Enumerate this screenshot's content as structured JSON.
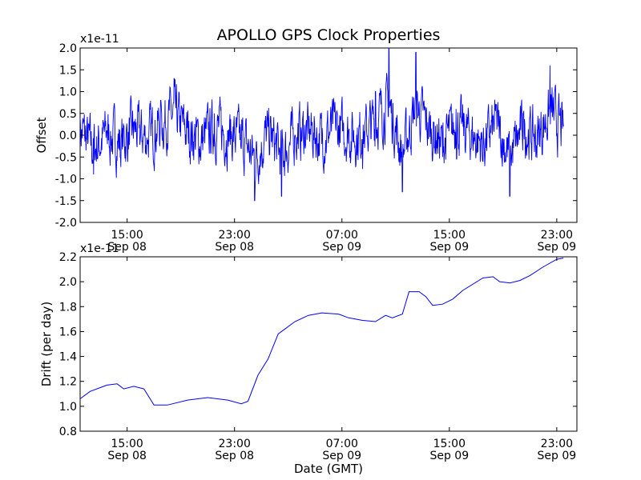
{
  "figure": {
    "title": "APOLLO GPS Clock Properties",
    "xlabel": "Date (GMT)"
  },
  "chart_data": [
    {
      "type": "line",
      "ylabel": "Offset",
      "yscale_label": "x1e-11",
      "ylim": [
        -2.0,
        2.0
      ],
      "yticks": [
        -2.0,
        -1.5,
        -1.0,
        -0.5,
        0.0,
        0.5,
        1.0,
        1.5,
        2.0
      ],
      "ytick_labels": [
        "-2.0",
        "-1.5",
        "-1.0",
        "-0.5",
        "0.0",
        "0.5",
        "1.0",
        "1.5",
        "2.0"
      ],
      "xlim_hours": [
        11.5,
        24.5
      ],
      "xticks": [
        {
          "time": "15:00",
          "date": "Sep 08"
        },
        {
          "time": "23:00",
          "date": "Sep 08"
        },
        {
          "time": "07:00",
          "date": "Sep 09"
        },
        {
          "time": "15:00",
          "date": "Sep 09"
        },
        {
          "time": "23:00",
          "date": "Sep 09"
        }
      ],
      "color": "#0000ff",
      "series": [
        {
          "x": [
            "Sep 08 11:30",
            "Sep 08 12:30",
            "Sep 08 13:30",
            "Sep 08 14:30",
            "Sep 08 15:30",
            "Sep 08 16:30",
            "Sep 08 17:30",
            "Sep 08 18:30",
            "Sep 08 19:30",
            "Sep 08 20:30",
            "Sep 08 21:30",
            "Sep 08 22:30",
            "Sep 08 23:30",
            "Sep 09 00:30",
            "Sep 09 01:30",
            "Sep 09 02:30",
            "Sep 09 03:30",
            "Sep 09 04:30",
            "Sep 09 05:30",
            "Sep 09 06:30",
            "Sep 09 07:30",
            "Sep 09 08:30",
            "Sep 09 09:30",
            "Sep 09 10:30",
            "Sep 09 11:30",
            "Sep 09 12:30",
            "Sep 09 13:30",
            "Sep 09 14:30",
            "Sep 09 15:30",
            "Sep 09 16:30",
            "Sep 09 17:30",
            "Sep 09 18:30",
            "Sep 09 19:30",
            "Sep 09 20:30",
            "Sep 09 21:30",
            "Sep 09 22:30",
            "Sep 09 23:30"
          ],
          "values": [
            0.4,
            -0.9,
            0.1,
            -0.5,
            0.3,
            -0.2,
            0.8,
            1.3,
            0.2,
            -0.4,
            0.5,
            0.1,
            -0.3,
            -1.5,
            0.2,
            -1.4,
            0.0,
            0.3,
            -0.2,
            0.5,
            0.1,
            -0.1,
            1.0,
            2.0,
            -1.3,
            1.9,
            0.4,
            -0.5,
            0.6,
            0.1,
            -0.6,
            0.7,
            -1.4,
            0.5,
            -0.3,
            1.6,
            0.2
          ],
          "noise_amplitude": 0.45
        }
      ]
    },
    {
      "type": "line",
      "ylabel": "Drift (per day)",
      "yscale_label": "x1e-11",
      "ylim": [
        0.8,
        2.2
      ],
      "yticks": [
        0.8,
        1.0,
        1.2,
        1.4,
        1.6,
        1.8,
        2.0,
        2.2
      ],
      "ytick_labels": [
        "0.8",
        "1.0",
        "1.2",
        "1.4",
        "1.6",
        "1.8",
        "2.0",
        "2.2"
      ],
      "xlim_hours": [
        11.5,
        24.5
      ],
      "xticks": [
        {
          "time": "15:00",
          "date": "Sep 08"
        },
        {
          "time": "23:00",
          "date": "Sep 08"
        },
        {
          "time": "07:00",
          "date": "Sep 09"
        },
        {
          "time": "15:00",
          "date": "Sep 09"
        },
        {
          "time": "23:00",
          "date": "Sep 09"
        }
      ],
      "color": "#0000ff",
      "series": [
        {
          "x": [
            "Sep 08 11:30",
            "Sep 08 12:15",
            "Sep 08 13:30",
            "Sep 08 14:15",
            "Sep 08 14:45",
            "Sep 08 15:30",
            "Sep 08 16:15",
            "Sep 08 17:00",
            "Sep 08 18:00",
            "Sep 08 19:30",
            "Sep 08 21:00",
            "Sep 08 22:30",
            "Sep 08 23:30",
            "Sep 09 00:00",
            "Sep 09 00:45",
            "Sep 09 01:30",
            "Sep 09 02:15",
            "Sep 09 02:45",
            "Sep 09 03:30",
            "Sep 09 04:30",
            "Sep 09 05:30",
            "Sep 09 06:45",
            "Sep 09 07:30",
            "Sep 09 08:30",
            "Sep 09 09:30",
            "Sep 09 10:15",
            "Sep 09 10:45",
            "Sep 09 11:30",
            "Sep 09 12:00",
            "Sep 09 12:45",
            "Sep 09 13:15",
            "Sep 09 13:45",
            "Sep 09 14:30",
            "Sep 09 15:15",
            "Sep 09 16:00",
            "Sep 09 17:30",
            "Sep 09 18:15",
            "Sep 09 18:45",
            "Sep 09 19:30",
            "Sep 09 20:15",
            "Sep 09 21:00",
            "Sep 09 22:00",
            "Sep 09 23:00",
            "Sep 09 23:30"
          ],
          "values": [
            1.06,
            1.12,
            1.17,
            1.18,
            1.14,
            1.16,
            1.14,
            1.01,
            1.01,
            1.05,
            1.07,
            1.05,
            1.02,
            1.04,
            1.25,
            1.38,
            1.58,
            1.62,
            1.68,
            1.73,
            1.75,
            1.74,
            1.71,
            1.69,
            1.68,
            1.73,
            1.71,
            1.74,
            1.92,
            1.92,
            1.88,
            1.81,
            1.82,
            1.86,
            1.93,
            2.03,
            2.04,
            2.0,
            1.99,
            2.01,
            2.05,
            2.12,
            2.18,
            2.19
          ]
        }
      ]
    }
  ]
}
